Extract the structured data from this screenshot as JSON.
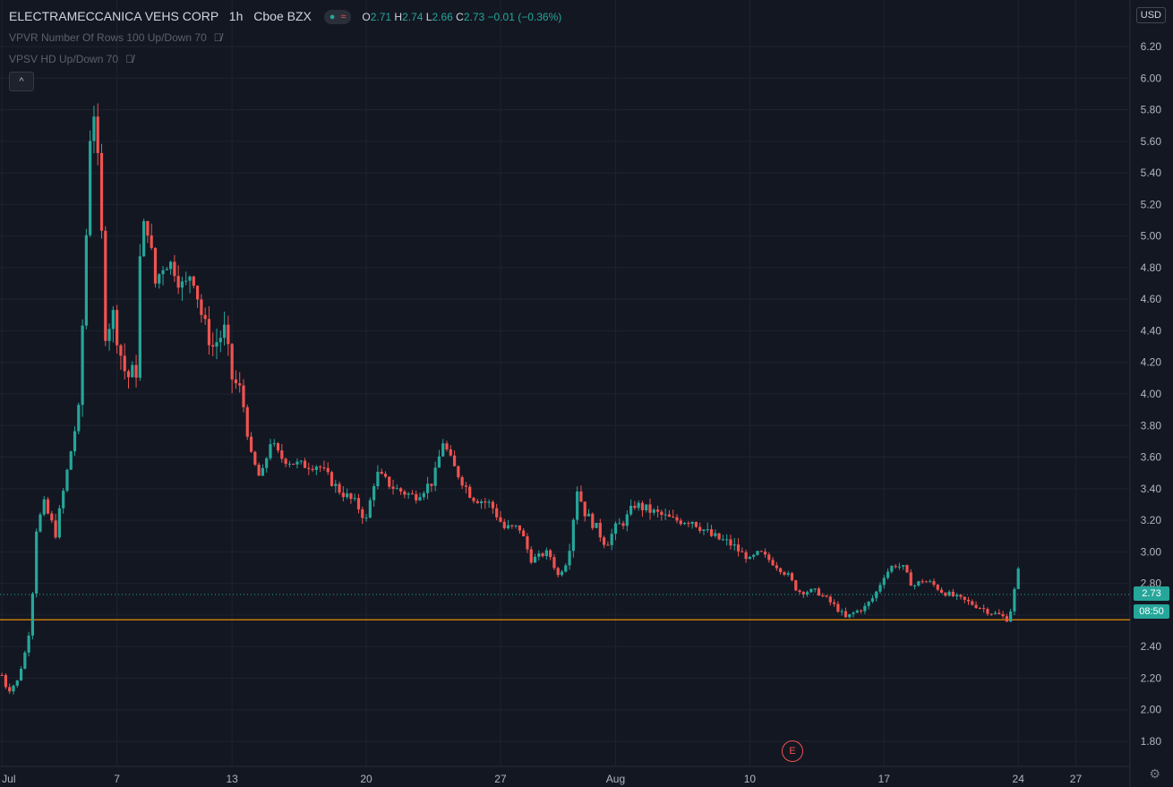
{
  "header": {
    "symbol": "ELECTRAMECCANICA VEHS CORP",
    "interval": "1h",
    "exchange": "Cboe BZX",
    "ohlc": {
      "o_label": "O",
      "o": "2.71",
      "h_label": "H",
      "h": "2.74",
      "l_label": "L",
      "l": "2.66",
      "c_label": "C",
      "c": "2.73",
      "change": "−0.01 (−0.36%)"
    }
  },
  "indicators": [
    {
      "label": "VPVR Number Of Rows 100 Up/Down 70"
    },
    {
      "label": "VPSV HD Up/Down 70"
    }
  ],
  "currency": "USD",
  "earnings_marker": "E",
  "price_tag": {
    "value": "2.73",
    "color": "#26a69a"
  },
  "countdown_tag": {
    "value": "08:50",
    "color": "#26a69a"
  },
  "chart_data": {
    "type": "candlestick",
    "ylim": [
      1.7,
      6.3
    ],
    "y_ticks": [
      "6.20",
      "6.00",
      "5.80",
      "5.60",
      "5.40",
      "5.20",
      "5.00",
      "4.80",
      "4.60",
      "4.40",
      "4.20",
      "4.00",
      "3.80",
      "3.60",
      "3.40",
      "3.20",
      "3.00",
      "2.80",
      "2.60",
      "2.40",
      "2.20",
      "2.00",
      "1.80"
    ],
    "x_ticks": [
      "Jul",
      "7",
      "13",
      "20",
      "27",
      "Aug",
      "10",
      "17",
      "24",
      "27"
    ],
    "x_tick_days": [
      1,
      7,
      13,
      20,
      27,
      33,
      40,
      47,
      54,
      57
    ],
    "x_range_days": [
      0.9,
      59.5
    ],
    "current_price": 2.73,
    "support_line": 2.57,
    "up_color": "#26a69a",
    "down_color": "#ef5350",
    "anchors": [
      [
        1.0,
        2.22
      ],
      [
        1.3,
        2.12
      ],
      [
        1.8,
        2.18
      ],
      [
        2.2,
        2.36
      ],
      [
        2.5,
        2.55
      ],
      [
        2.8,
        3.15
      ],
      [
        3.2,
        3.3
      ],
      [
        3.8,
        3.12
      ],
      [
        5.0,
        3.9
      ],
      [
        5.3,
        4.7
      ],
      [
        5.7,
        5.95
      ],
      [
        6.1,
        5.3
      ],
      [
        6.4,
        4.4
      ],
      [
        6.8,
        4.5
      ],
      [
        7.2,
        4.25
      ],
      [
        7.5,
        4.1
      ],
      [
        8.0,
        4.15
      ],
      [
        8.2,
        4.85
      ],
      [
        8.5,
        5.15
      ],
      [
        9.0,
        4.7
      ],
      [
        9.5,
        4.85
      ],
      [
        10.0,
        4.8
      ],
      [
        10.5,
        4.65
      ],
      [
        10.9,
        4.8
      ],
      [
        11.5,
        4.45
      ],
      [
        12.0,
        4.3
      ],
      [
        12.6,
        4.4
      ],
      [
        13.0,
        4.1
      ],
      [
        13.5,
        4.0
      ],
      [
        14.0,
        3.6
      ],
      [
        14.5,
        3.45
      ],
      [
        15.0,
        3.7
      ],
      [
        15.5,
        3.6
      ],
      [
        16.5,
        3.55
      ],
      [
        17.5,
        3.55
      ],
      [
        18.5,
        3.4
      ],
      [
        19.5,
        3.3
      ],
      [
        20.0,
        3.2
      ],
      [
        20.5,
        3.5
      ],
      [
        21.5,
        3.4
      ],
      [
        22.5,
        3.35
      ],
      [
        23.5,
        3.45
      ],
      [
        24.0,
        3.7
      ],
      [
        24.5,
        3.55
      ],
      [
        25.5,
        3.35
      ],
      [
        26.5,
        3.3
      ],
      [
        27.2,
        3.15
      ],
      [
        28.0,
        3.15
      ],
      [
        28.6,
        2.95
      ],
      [
        29.5,
        3.0
      ],
      [
        30.0,
        2.85
      ],
      [
        30.5,
        2.95
      ],
      [
        31.0,
        3.4
      ],
      [
        31.4,
        3.25
      ],
      [
        32.0,
        3.15
      ],
      [
        32.5,
        3.05
      ],
      [
        33.0,
        3.15
      ],
      [
        33.5,
        3.2
      ],
      [
        34.0,
        3.3
      ],
      [
        35.0,
        3.25
      ],
      [
        36.0,
        3.2
      ],
      [
        37.0,
        3.2
      ],
      [
        38.0,
        3.1
      ],
      [
        39.0,
        3.05
      ],
      [
        40.0,
        2.95
      ],
      [
        40.5,
        3.0
      ],
      [
        41.0,
        2.95
      ],
      [
        42.0,
        2.85
      ],
      [
        42.5,
        2.75
      ],
      [
        43.5,
        2.75
      ],
      [
        44.0,
        2.7
      ],
      [
        44.5,
        2.65
      ],
      [
        45.0,
        2.58
      ],
      [
        45.5,
        2.62
      ],
      [
        46.0,
        2.65
      ],
      [
        46.5,
        2.72
      ],
      [
        47.0,
        2.85
      ],
      [
        47.5,
        2.92
      ],
      [
        48.0,
        2.9
      ],
      [
        48.5,
        2.78
      ],
      [
        49.0,
        2.82
      ],
      [
        49.5,
        2.8
      ],
      [
        50.0,
        2.75
      ],
      [
        51.0,
        2.7
      ],
      [
        52.0,
        2.65
      ],
      [
        52.5,
        2.62
      ],
      [
        53.0,
        2.6
      ],
      [
        53.5,
        2.57
      ],
      [
        54.0,
        2.88
      ],
      [
        54.1,
        2.73
      ]
    ]
  }
}
